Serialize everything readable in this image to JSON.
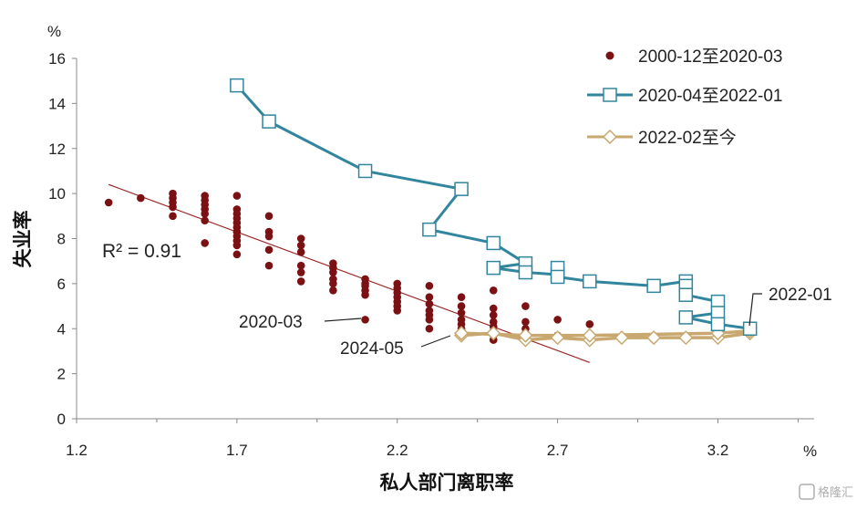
{
  "chart_data": {
    "type": "scatter",
    "xlabel": "私人部门离职率",
    "ylabel": "失业率",
    "x_unit": "%",
    "y_unit": "%",
    "xlim": [
      1.2,
      3.5
    ],
    "ylim": [
      0,
      16
    ],
    "x_ticks": [
      "1.2",
      "1.7",
      "2.2",
      "2.7",
      "3.2"
    ],
    "y_ticks": [
      "0",
      "2",
      "4",
      "6",
      "8",
      "10",
      "12",
      "14",
      "16"
    ],
    "legend_position": "top-right",
    "series": [
      {
        "name": "2000-12至2020-03",
        "mode": "markers",
        "color": "#7b1113",
        "points": [
          [
            1.3,
            9.6
          ],
          [
            1.4,
            9.8
          ],
          [
            1.5,
            10.0
          ],
          [
            1.5,
            9.8
          ],
          [
            1.5,
            9.6
          ],
          [
            1.5,
            9.4
          ],
          [
            1.5,
            9.0
          ],
          [
            1.6,
            9.9
          ],
          [
            1.6,
            9.7
          ],
          [
            1.6,
            9.5
          ],
          [
            1.6,
            9.3
          ],
          [
            1.6,
            9.1
          ],
          [
            1.6,
            8.8
          ],
          [
            1.6,
            7.8
          ],
          [
            1.7,
            9.9
          ],
          [
            1.7,
            9.3
          ],
          [
            1.7,
            9.1
          ],
          [
            1.7,
            8.9
          ],
          [
            1.7,
            8.7
          ],
          [
            1.7,
            8.5
          ],
          [
            1.7,
            8.3
          ],
          [
            1.7,
            8.1
          ],
          [
            1.7,
            7.9
          ],
          [
            1.7,
            7.7
          ],
          [
            1.7,
            7.3
          ],
          [
            1.8,
            9.0
          ],
          [
            1.8,
            8.3
          ],
          [
            1.8,
            8.1
          ],
          [
            1.8,
            7.5
          ],
          [
            1.8,
            6.8
          ],
          [
            1.9,
            8.0
          ],
          [
            1.9,
            7.7
          ],
          [
            1.9,
            7.4
          ],
          [
            1.9,
            6.8
          ],
          [
            1.9,
            6.5
          ],
          [
            1.9,
            6.1
          ],
          [
            2.0,
            6.9
          ],
          [
            2.0,
            6.7
          ],
          [
            2.0,
            6.5
          ],
          [
            2.0,
            6.2
          ],
          [
            2.0,
            6.0
          ],
          [
            2.0,
            5.7
          ],
          [
            2.1,
            6.2
          ],
          [
            2.1,
            6.0
          ],
          [
            2.1,
            5.9
          ],
          [
            2.1,
            5.7
          ],
          [
            2.1,
            5.5
          ],
          [
            2.1,
            4.4
          ],
          [
            2.2,
            6.0
          ],
          [
            2.2,
            5.8
          ],
          [
            2.2,
            5.6
          ],
          [
            2.2,
            5.4
          ],
          [
            2.2,
            5.2
          ],
          [
            2.2,
            5.0
          ],
          [
            2.2,
            4.8
          ],
          [
            2.3,
            5.9
          ],
          [
            2.3,
            5.4
          ],
          [
            2.3,
            5.1
          ],
          [
            2.3,
            4.8
          ],
          [
            2.3,
            4.6
          ],
          [
            2.3,
            4.4
          ],
          [
            2.3,
            4.0
          ],
          [
            2.4,
            5.4
          ],
          [
            2.4,
            5.0
          ],
          [
            2.4,
            4.7
          ],
          [
            2.4,
            4.4
          ],
          [
            2.4,
            4.2
          ],
          [
            2.4,
            4.0
          ],
          [
            2.4,
            3.8
          ],
          [
            2.5,
            5.7
          ],
          [
            2.5,
            4.9
          ],
          [
            2.5,
            4.6
          ],
          [
            2.5,
            4.3
          ],
          [
            2.5,
            4.1
          ],
          [
            2.5,
            3.9
          ],
          [
            2.5,
            3.7
          ],
          [
            2.5,
            3.5
          ],
          [
            2.6,
            5.0
          ],
          [
            2.6,
            4.3
          ],
          [
            2.6,
            4.0
          ],
          [
            2.6,
            3.8
          ],
          [
            2.6,
            3.6
          ],
          [
            2.7,
            4.4
          ],
          [
            2.7,
            3.7
          ],
          [
            2.8,
            4.2
          ]
        ]
      },
      {
        "name": "2020-04至2022-01",
        "mode": "lines+markers",
        "color": "#31859c",
        "points": [
          [
            1.7,
            14.8
          ],
          [
            1.8,
            13.2
          ],
          [
            2.1,
            11.0
          ],
          [
            2.4,
            10.2
          ],
          [
            2.3,
            8.4
          ],
          [
            2.5,
            7.8
          ],
          [
            2.6,
            6.9
          ],
          [
            2.5,
            6.7
          ],
          [
            2.6,
            6.5
          ],
          [
            2.7,
            6.4
          ],
          [
            2.7,
            6.7
          ],
          [
            2.7,
            6.3
          ],
          [
            2.8,
            6.1
          ],
          [
            3.0,
            5.9
          ],
          [
            3.1,
            6.1
          ],
          [
            3.1,
            5.9
          ],
          [
            3.1,
            5.5
          ],
          [
            3.2,
            5.2
          ],
          [
            3.2,
            4.7
          ],
          [
            3.1,
            4.5
          ],
          [
            3.2,
            4.2
          ],
          [
            3.3,
            4.0
          ]
        ]
      },
      {
        "name": "2022-02至今",
        "mode": "lines+markers",
        "color": "#c8a86e",
        "points": [
          [
            3.3,
            3.8
          ],
          [
            3.2,
            3.6
          ],
          [
            3.1,
            3.6
          ],
          [
            3.0,
            3.6
          ],
          [
            2.9,
            3.6
          ],
          [
            2.8,
            3.5
          ],
          [
            2.7,
            3.6
          ],
          [
            2.6,
            3.5
          ],
          [
            2.5,
            3.8
          ],
          [
            2.4,
            3.7
          ],
          [
            2.4,
            3.8
          ],
          [
            2.6,
            3.7
          ],
          [
            2.8,
            3.7
          ],
          [
            3.2,
            3.8
          ],
          [
            3.3,
            3.9
          ]
        ]
      }
    ],
    "trendline": {
      "from": [
        1.3,
        10.4
      ],
      "to": [
        2.8,
        2.5
      ],
      "color": "#9b2a2a",
      "r2_label": "R² = 0.91"
    },
    "annotations": [
      {
        "id": "a2020",
        "text": "2020-03",
        "x": 2.1,
        "y": 4.4
      },
      {
        "id": "a2024",
        "text": "2024-05",
        "x": 2.4,
        "y": 3.7
      },
      {
        "id": "a2022",
        "text": "2022-01",
        "x": 3.3,
        "y": 4.0
      }
    ]
  },
  "watermark": "格隆汇"
}
